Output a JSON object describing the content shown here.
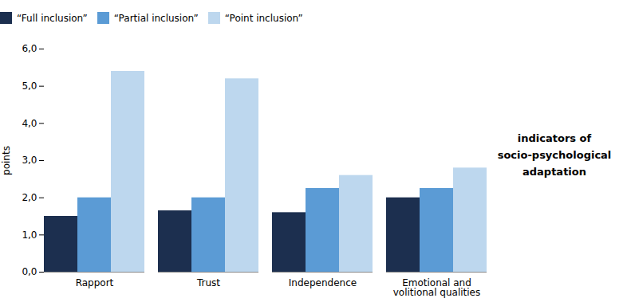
{
  "chart_data": {
    "type": "bar",
    "categories": [
      "Rapport",
      "Trust",
      "Independence",
      "Emotional and\nvolitional qualities"
    ],
    "series": [
      {
        "name": "“Full inclusion”",
        "color": "#1c2f4f",
        "values": [
          1.5,
          1.65,
          1.6,
          2.0
        ]
      },
      {
        "name": "“Partial inclusion”",
        "color": "#5b9bd5",
        "values": [
          2.0,
          2.0,
          2.25,
          2.25
        ]
      },
      {
        "name": "“Point  inclusion”",
        "color": "#bdd7ee",
        "values": [
          5.4,
          5.2,
          2.6,
          2.8
        ]
      }
    ],
    "ylabel": "points",
    "xlabel": "indicators of\nsocio-psychological\nadaptation",
    "ylim": [
      0,
      6.0
    ],
    "yticks": [
      {
        "value": 0.0,
        "label": "0,0"
      },
      {
        "value": 1.0,
        "label": "1,0"
      },
      {
        "value": 2.0,
        "label": "2,0"
      },
      {
        "value": 3.0,
        "label": "3,0"
      },
      {
        "value": 4.0,
        "label": "4,0"
      },
      {
        "value": 5.0,
        "label": "5,0"
      },
      {
        "value": 6.0,
        "label": "6,0"
      }
    ],
    "grid": false,
    "legend": "upper left"
  }
}
